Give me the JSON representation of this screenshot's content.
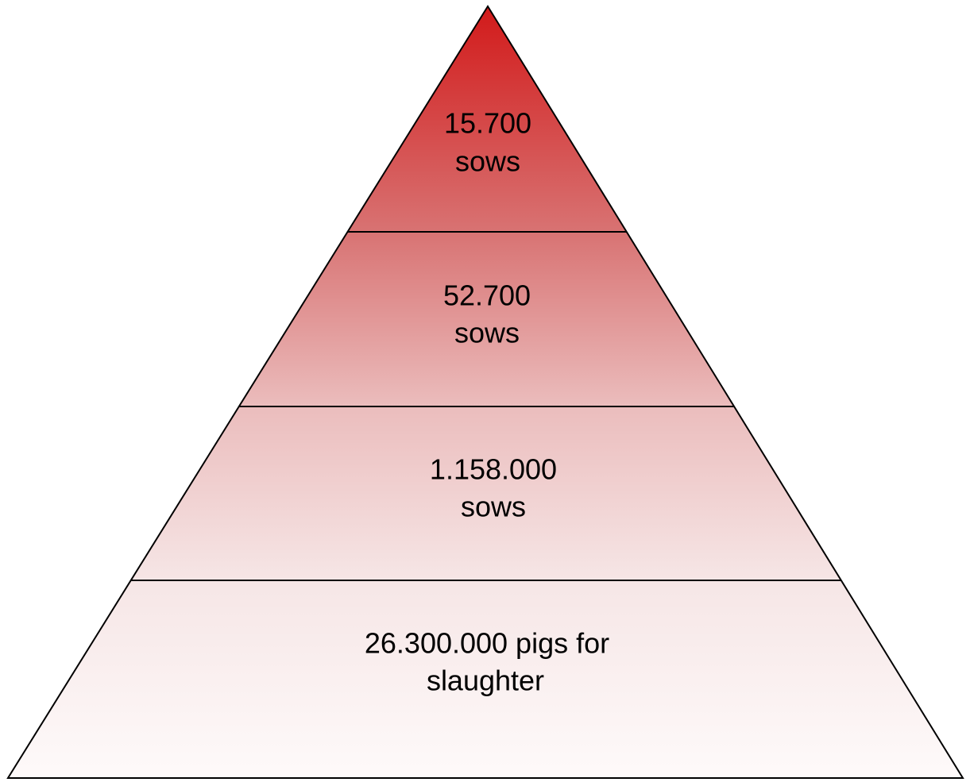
{
  "levels": [
    {
      "lines": [
        "15.700",
        "sows"
      ]
    },
    {
      "lines": [
        "52.700",
        "sows"
      ]
    },
    {
      "lines": [
        "1.158.000",
        "sows"
      ]
    },
    {
      "lines": [
        "26.300.000 pigs for",
        "slaughter"
      ]
    }
  ]
}
